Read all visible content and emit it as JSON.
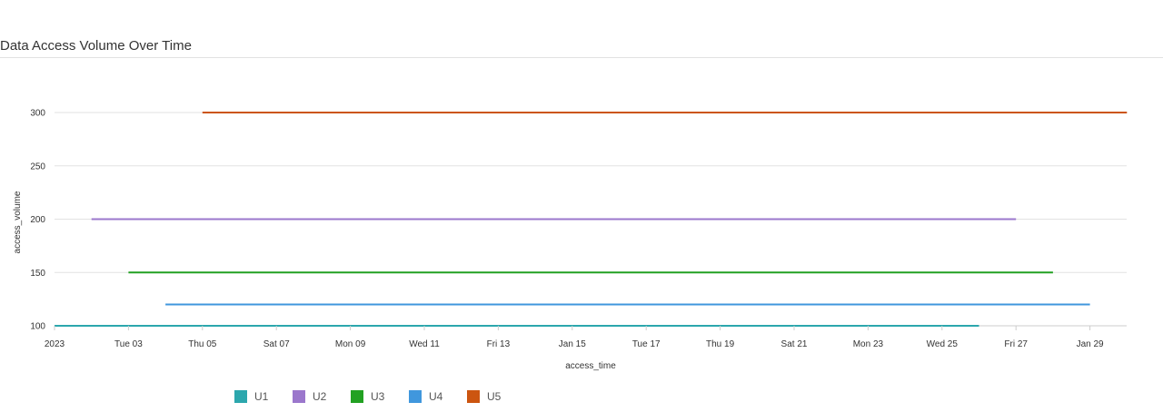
{
  "chart_data": {
    "type": "line",
    "title": "Data Access Volume Over Time",
    "xlabel": "access_time",
    "ylabel": "access_volume",
    "x_ticks": [
      "2023",
      "Tue 03",
      "Thu 05",
      "Sat 07",
      "Mon 09",
      "Wed 11",
      "Fri 13",
      "Jan 15",
      "Tue 17",
      "Thu 19",
      "Sat 21",
      "Mon 23",
      "Wed 25",
      "Fri 27",
      "Jan 29"
    ],
    "x_range": [
      "2023-01-01",
      "2023-01-30"
    ],
    "y_ticks": [
      100,
      150,
      200,
      250,
      300
    ],
    "ylim": [
      100,
      300
    ],
    "grid": true,
    "legend": "bottom",
    "series": [
      {
        "name": "U1",
        "color": "#2ca7ad",
        "x": [
          "2023-01-01",
          "2023-01-26"
        ],
        "values": [
          100,
          100
        ]
      },
      {
        "name": "U2",
        "color": "#9b77cc",
        "x": [
          "2023-01-02",
          "2023-01-27"
        ],
        "values": [
          200,
          200
        ]
      },
      {
        "name": "U3",
        "color": "#22a122",
        "x": [
          "2023-01-03",
          "2023-01-28"
        ],
        "values": [
          150,
          150
        ]
      },
      {
        "name": "U4",
        "color": "#4097dd",
        "x": [
          "2023-01-04",
          "2023-01-29"
        ],
        "values": [
          120,
          120
        ]
      },
      {
        "name": "U5",
        "color": "#cc5510",
        "x": [
          "2023-01-05",
          "2023-01-30"
        ],
        "values": [
          300,
          300
        ]
      }
    ]
  }
}
